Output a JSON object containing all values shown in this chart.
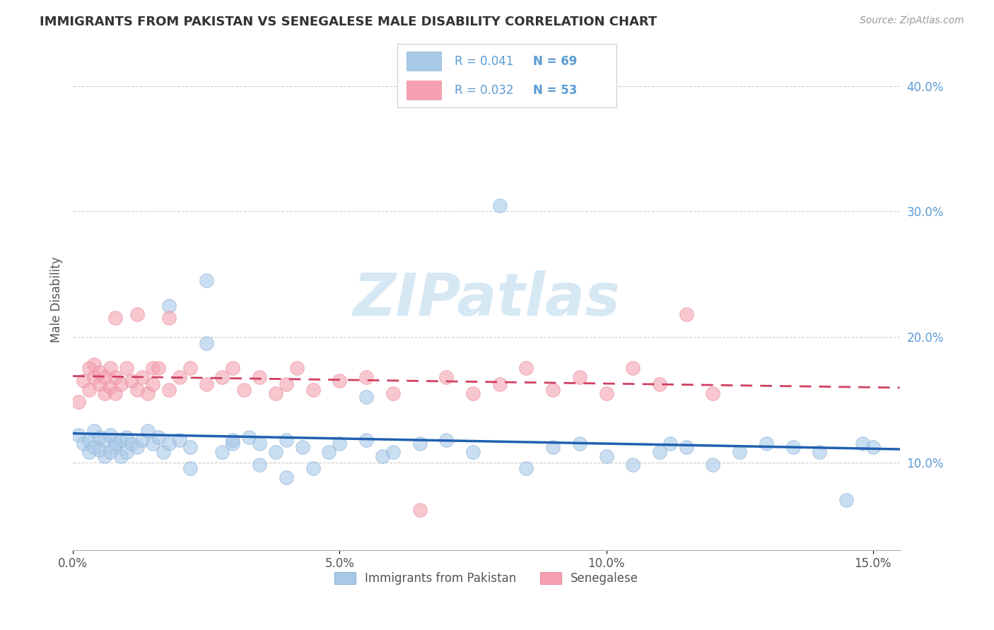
{
  "title": "IMMIGRANTS FROM PAKISTAN VS SENEGALESE MALE DISABILITY CORRELATION CHART",
  "source": "Source: ZipAtlas.com",
  "ylabel": "Male Disability",
  "xlim": [
    0.0,
    0.155
  ],
  "ylim": [
    0.03,
    0.43
  ],
  "yticks": [
    0.1,
    0.2,
    0.3,
    0.4
  ],
  "ytick_labels": [
    "10.0%",
    "20.0%",
    "30.0%",
    "40.0%"
  ],
  "xticks": [
    0.0,
    0.05,
    0.1,
    0.15
  ],
  "xtick_labels": [
    "0.0%",
    "5.0%",
    "10.0%",
    "15.0%"
  ],
  "blue_R": 0.041,
  "blue_N": 69,
  "pink_R": 0.032,
  "pink_N": 53,
  "blue_color": "#a8c8e8",
  "pink_color": "#f4a0b0",
  "blue_edge_color": "#90b4d8",
  "pink_edge_color": "#e890a0",
  "blue_line_color": "#2060b0",
  "pink_line_color": "#d04060",
  "watermark_color": "#d0e4f4",
  "legend_label_blue": "Immigrants from Pakistan",
  "legend_label_pink": "Senegalese",
  "blue_scatter_x": [
    0.001,
    0.002,
    0.003,
    0.003,
    0.004,
    0.004,
    0.005,
    0.005,
    0.006,
    0.006,
    0.007,
    0.007,
    0.008,
    0.008,
    0.009,
    0.009,
    0.01,
    0.01,
    0.011,
    0.012,
    0.013,
    0.014,
    0.015,
    0.016,
    0.017,
    0.018,
    0.02,
    0.022,
    0.025,
    0.028,
    0.03,
    0.033,
    0.035,
    0.038,
    0.04,
    0.043,
    0.045,
    0.048,
    0.05,
    0.055,
    0.058,
    0.06,
    0.065,
    0.07,
    0.075,
    0.08,
    0.085,
    0.09,
    0.095,
    0.1,
    0.105,
    0.11,
    0.112,
    0.115,
    0.12,
    0.125,
    0.13,
    0.135,
    0.14,
    0.145,
    0.148,
    0.15,
    0.04,
    0.055,
    0.025,
    0.03,
    0.018,
    0.022,
    0.035
  ],
  "blue_scatter_y": [
    0.122,
    0.115,
    0.118,
    0.108,
    0.125,
    0.112,
    0.12,
    0.11,
    0.118,
    0.105,
    0.122,
    0.108,
    0.115,
    0.112,
    0.118,
    0.105,
    0.12,
    0.108,
    0.115,
    0.112,
    0.118,
    0.125,
    0.115,
    0.12,
    0.108,
    0.115,
    0.118,
    0.112,
    0.195,
    0.108,
    0.115,
    0.12,
    0.115,
    0.108,
    0.118,
    0.112,
    0.095,
    0.108,
    0.115,
    0.152,
    0.105,
    0.108,
    0.115,
    0.118,
    0.108,
    0.305,
    0.095,
    0.112,
    0.115,
    0.105,
    0.098,
    0.108,
    0.115,
    0.112,
    0.098,
    0.108,
    0.115,
    0.112,
    0.108,
    0.07,
    0.115,
    0.112,
    0.088,
    0.118,
    0.245,
    0.118,
    0.225,
    0.095,
    0.098
  ],
  "pink_scatter_x": [
    0.001,
    0.002,
    0.003,
    0.003,
    0.004,
    0.004,
    0.005,
    0.005,
    0.006,
    0.006,
    0.007,
    0.007,
    0.008,
    0.008,
    0.009,
    0.01,
    0.011,
    0.012,
    0.013,
    0.014,
    0.015,
    0.015,
    0.016,
    0.018,
    0.02,
    0.022,
    0.025,
    0.028,
    0.03,
    0.032,
    0.035,
    0.038,
    0.04,
    0.042,
    0.045,
    0.05,
    0.055,
    0.06,
    0.065,
    0.07,
    0.075,
    0.08,
    0.085,
    0.09,
    0.095,
    0.1,
    0.105,
    0.11,
    0.115,
    0.12,
    0.008,
    0.012,
    0.018
  ],
  "pink_scatter_y": [
    0.148,
    0.165,
    0.175,
    0.158,
    0.168,
    0.178,
    0.162,
    0.172,
    0.155,
    0.168,
    0.175,
    0.16,
    0.168,
    0.155,
    0.162,
    0.175,
    0.165,
    0.158,
    0.168,
    0.155,
    0.175,
    0.162,
    0.175,
    0.158,
    0.168,
    0.175,
    0.162,
    0.168,
    0.175,
    0.158,
    0.168,
    0.155,
    0.162,
    0.175,
    0.158,
    0.165,
    0.168,
    0.155,
    0.062,
    0.168,
    0.155,
    0.162,
    0.175,
    0.158,
    0.168,
    0.155,
    0.175,
    0.162,
    0.218,
    0.155,
    0.215,
    0.218,
    0.215
  ]
}
